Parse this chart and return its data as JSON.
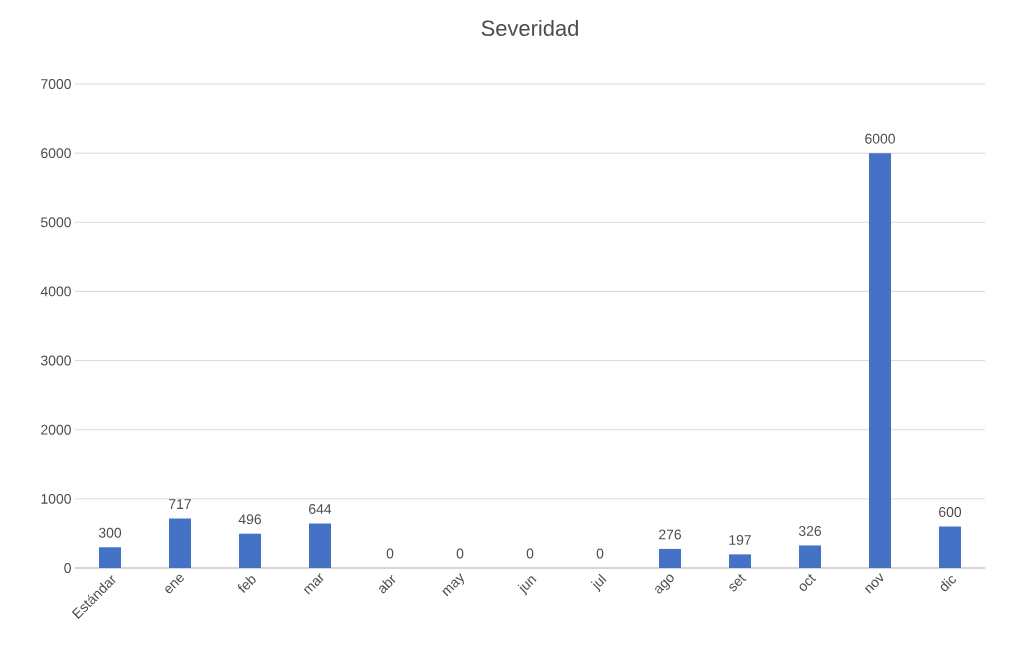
{
  "chart_data": {
    "type": "bar",
    "title": "Severidad",
    "categories": [
      "Estándar",
      "ene",
      "feb",
      "mar",
      "abr",
      "may",
      "jun",
      "jul",
      "ago",
      "set",
      "oct",
      "nov",
      "dic"
    ],
    "values": [
      300,
      717,
      496,
      644,
      0,
      0,
      0,
      0,
      276,
      197,
      326,
      6000,
      600
    ],
    "color": "#4472c4",
    "ylim": [
      0,
      7000
    ],
    "yticks": [
      0,
      1000,
      2000,
      3000,
      4000,
      5000,
      6000,
      7000
    ],
    "grid": "y",
    "data_labels": true
  }
}
